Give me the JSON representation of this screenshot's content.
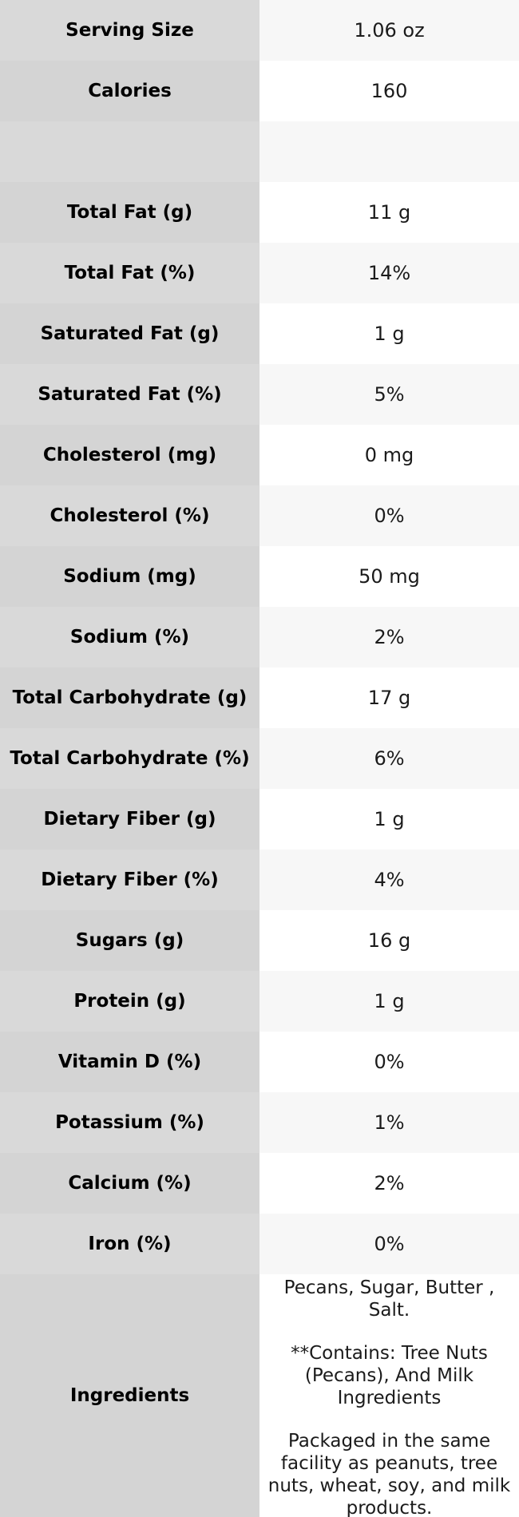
{
  "chart_data": {
    "type": "table",
    "rows": [
      [
        "Serving Size",
        "1.06 oz"
      ],
      [
        "Calories",
        "160"
      ],
      [
        "",
        ""
      ],
      [
        "Total Fat (g)",
        "11 g"
      ],
      [
        "Total Fat (%)",
        "14%"
      ],
      [
        "Saturated Fat (g)",
        "1 g"
      ],
      [
        "Saturated Fat (%)",
        "5%"
      ],
      [
        "Cholesterol (mg)",
        "0 mg"
      ],
      [
        "Cholesterol (%)",
        "0%"
      ],
      [
        "Sodium (mg)",
        "50 mg"
      ],
      [
        "Sodium (%)",
        "2%"
      ],
      [
        "Total Carbohydrate (g)",
        "17 g"
      ],
      [
        "Total Carbohydrate (%)",
        "6%"
      ],
      [
        "Dietary Fiber (g)",
        "1 g"
      ],
      [
        "Dietary Fiber (%)",
        "4%"
      ],
      [
        "Sugars (g)",
        "16 g"
      ],
      [
        "Protein (g)",
        "1 g"
      ],
      [
        "Vitamin D (%)",
        "0%"
      ],
      [
        "Potassium (%)",
        "1%"
      ],
      [
        "Calcium (%)",
        "2%"
      ],
      [
        "Iron (%)",
        "0%"
      ]
    ],
    "ingredients": {
      "label": "Ingredients",
      "paragraphs": [
        "Pecans, Sugar, Butter , Salt.",
        "**Contains: Tree Nuts (Pecans), And Milk Ingredients",
        "Packaged in the same facility as peanuts, tree nuts, wheat, soy, and milk products."
      ]
    },
    "style": {
      "label_bg_odd": "#d9d9d9",
      "label_bg_even": "#d4d4d4",
      "value_bg_odd": "#f7f7f7",
      "value_bg_even": "#ffffff",
      "label_text_color": "#000000",
      "value_text_color": "#1b1b1b"
    }
  }
}
